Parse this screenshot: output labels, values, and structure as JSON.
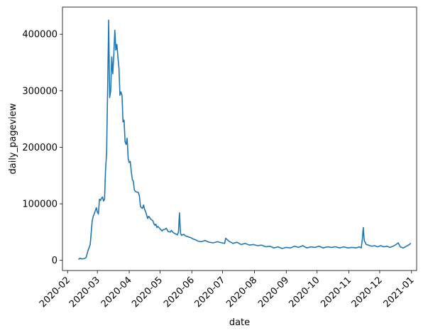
{
  "chart_data": {
    "type": "line",
    "title": "",
    "xlabel": "date",
    "ylabel": "daily_pageview",
    "xlim": [
      "2020-01-27",
      "2021-01-06"
    ],
    "ylim": [
      -18000,
      448000
    ],
    "x_ticks": [
      "2020-02",
      "2020-03",
      "2020-04",
      "2020-05",
      "2020-06",
      "2020-07",
      "2020-08",
      "2020-09",
      "2020-10",
      "2020-11",
      "2020-12",
      "2021-01"
    ],
    "x_tick_dates": [
      "2020-02-01",
      "2020-03-01",
      "2020-04-01",
      "2020-05-01",
      "2020-06-01",
      "2020-07-01",
      "2020-08-01",
      "2020-09-01",
      "2020-10-01",
      "2020-11-01",
      "2020-12-01",
      "2021-01-01"
    ],
    "y_ticks": [
      0,
      100000,
      200000,
      300000,
      400000
    ],
    "grid": false,
    "color": "#1f77b4",
    "series": [
      {
        "name": "",
        "points": [
          [
            "2020-02-12",
            2000
          ],
          [
            "2020-02-13",
            4000
          ],
          [
            "2020-02-14",
            3000
          ],
          [
            "2020-02-15",
            2500
          ],
          [
            "2020-02-17",
            3000
          ],
          [
            "2020-02-19",
            5000
          ],
          [
            "2020-02-21",
            18000
          ],
          [
            "2020-02-23",
            28000
          ],
          [
            "2020-02-25",
            70000
          ],
          [
            "2020-02-26",
            78000
          ],
          [
            "2020-02-28",
            88000
          ],
          [
            "2020-02-29",
            93000
          ],
          [
            "2020-03-01",
            85000
          ],
          [
            "2020-03-02",
            82000
          ],
          [
            "2020-03-03",
            108000
          ],
          [
            "2020-03-04",
            106000
          ],
          [
            "2020-03-05",
            110000
          ],
          [
            "2020-03-06",
            112000
          ],
          [
            "2020-03-07",
            105000
          ],
          [
            "2020-03-08",
            108000
          ],
          [
            "2020-03-09",
            160000
          ],
          [
            "2020-03-10",
            190000
          ],
          [
            "2020-03-11",
            300000
          ],
          [
            "2020-03-12",
            425000
          ],
          [
            "2020-03-13",
            288000
          ],
          [
            "2020-03-14",
            300000
          ],
          [
            "2020-03-15",
            360000
          ],
          [
            "2020-03-16",
            330000
          ],
          [
            "2020-03-17",
            362000
          ],
          [
            "2020-03-18",
            407000
          ],
          [
            "2020-03-19",
            372000
          ],
          [
            "2020-03-20",
            382000
          ],
          [
            "2020-03-21",
            360000
          ],
          [
            "2020-03-22",
            340000
          ],
          [
            "2020-03-23",
            292000
          ],
          [
            "2020-03-24",
            298000
          ],
          [
            "2020-03-25",
            292000
          ],
          [
            "2020-03-26",
            245000
          ],
          [
            "2020-03-27",
            248000
          ],
          [
            "2020-03-28",
            210000
          ],
          [
            "2020-03-29",
            205000
          ],
          [
            "2020-03-30",
            216000
          ],
          [
            "2020-03-31",
            180000
          ],
          [
            "2020-04-01",
            173000
          ],
          [
            "2020-04-02",
            175000
          ],
          [
            "2020-04-03",
            158000
          ],
          [
            "2020-04-04",
            143000
          ],
          [
            "2020-04-05",
            140000
          ],
          [
            "2020-04-06",
            125000
          ],
          [
            "2020-04-07",
            122000
          ],
          [
            "2020-04-08",
            121000
          ],
          [
            "2020-04-10",
            120000
          ],
          [
            "2020-04-11",
            113000
          ],
          [
            "2020-04-12",
            95000
          ],
          [
            "2020-04-13",
            93000
          ],
          [
            "2020-04-14",
            92000
          ],
          [
            "2020-04-15",
            98000
          ],
          [
            "2020-04-16",
            90000
          ],
          [
            "2020-04-17",
            86000
          ],
          [
            "2020-04-18",
            80000
          ],
          [
            "2020-04-19",
            74000
          ],
          [
            "2020-04-20",
            78000
          ],
          [
            "2020-04-22",
            73000
          ],
          [
            "2020-04-24",
            70000
          ],
          [
            "2020-04-25",
            65000
          ],
          [
            "2020-04-26",
            62000
          ],
          [
            "2020-04-27",
            64000
          ],
          [
            "2020-04-28",
            58000
          ],
          [
            "2020-04-29",
            60000
          ],
          [
            "2020-05-01",
            56000
          ],
          [
            "2020-05-03",
            52000
          ],
          [
            "2020-05-04",
            54000
          ],
          [
            "2020-05-06",
            55000
          ],
          [
            "2020-05-07",
            57000
          ],
          [
            "2020-05-09",
            51000
          ],
          [
            "2020-05-11",
            50000
          ],
          [
            "2020-05-12",
            53000
          ],
          [
            "2020-05-14",
            49000
          ],
          [
            "2020-05-16",
            47000
          ],
          [
            "2020-05-18",
            45000
          ],
          [
            "2020-05-19",
            50000
          ],
          [
            "2020-05-20",
            84000
          ],
          [
            "2020-05-21",
            48000
          ],
          [
            "2020-05-22",
            44000
          ],
          [
            "2020-05-24",
            46000
          ],
          [
            "2020-05-26",
            43000
          ],
          [
            "2020-05-28",
            42000
          ],
          [
            "2020-05-31",
            40000
          ],
          [
            "2020-06-02",
            38000
          ],
          [
            "2020-06-05",
            36000
          ],
          [
            "2020-06-07",
            34000
          ],
          [
            "2020-06-10",
            33000
          ],
          [
            "2020-06-14",
            35000
          ],
          [
            "2020-06-18",
            32000
          ],
          [
            "2020-06-22",
            31000
          ],
          [
            "2020-06-26",
            33000
          ],
          [
            "2020-06-30",
            31000
          ],
          [
            "2020-07-03",
            30000
          ],
          [
            "2020-07-04",
            39000
          ],
          [
            "2020-07-07",
            34000
          ],
          [
            "2020-07-11",
            30000
          ],
          [
            "2020-07-15",
            32000
          ],
          [
            "2020-07-19",
            28000
          ],
          [
            "2020-07-23",
            30000
          ],
          [
            "2020-07-27",
            27000
          ],
          [
            "2020-07-31",
            28000
          ],
          [
            "2020-08-04",
            26000
          ],
          [
            "2020-08-08",
            27000
          ],
          [
            "2020-08-12",
            24000
          ],
          [
            "2020-08-16",
            25000
          ],
          [
            "2020-08-20",
            22000
          ],
          [
            "2020-08-24",
            24000
          ],
          [
            "2020-08-28",
            21000
          ],
          [
            "2020-09-01",
            23000
          ],
          [
            "2020-09-05",
            22000
          ],
          [
            "2020-09-09",
            25000
          ],
          [
            "2020-09-13",
            23000
          ],
          [
            "2020-09-17",
            26000
          ],
          [
            "2020-09-21",
            22000
          ],
          [
            "2020-09-25",
            24000
          ],
          [
            "2020-09-29",
            23000
          ],
          [
            "2020-10-03",
            25000
          ],
          [
            "2020-10-07",
            22000
          ],
          [
            "2020-10-11",
            24000
          ],
          [
            "2020-10-15",
            23000
          ],
          [
            "2020-10-19",
            24000
          ],
          [
            "2020-10-23",
            22000
          ],
          [
            "2020-10-27",
            24000
          ],
          [
            "2020-10-31",
            22000
          ],
          [
            "2020-11-04",
            23000
          ],
          [
            "2020-11-08",
            22000
          ],
          [
            "2020-11-11",
            24000
          ],
          [
            "2020-11-13",
            22000
          ],
          [
            "2020-11-14",
            35000
          ],
          [
            "2020-11-15",
            58000
          ],
          [
            "2020-11-16",
            35000
          ],
          [
            "2020-11-18",
            28000
          ],
          [
            "2020-11-20",
            27000
          ],
          [
            "2020-11-23",
            25000
          ],
          [
            "2020-11-26",
            26000
          ],
          [
            "2020-11-29",
            24000
          ],
          [
            "2020-12-02",
            26000
          ],
          [
            "2020-12-05",
            24000
          ],
          [
            "2020-12-08",
            25000
          ],
          [
            "2020-12-11",
            23000
          ],
          [
            "2020-12-14",
            25000
          ],
          [
            "2020-12-17",
            28000
          ],
          [
            "2020-12-19",
            31000
          ],
          [
            "2020-12-21",
            24000
          ],
          [
            "2020-12-24",
            22000
          ],
          [
            "2020-12-27",
            25000
          ],
          [
            "2020-12-29",
            27000
          ],
          [
            "2020-12-30",
            28000
          ],
          [
            "2020-12-31",
            30000
          ]
        ]
      }
    ]
  }
}
